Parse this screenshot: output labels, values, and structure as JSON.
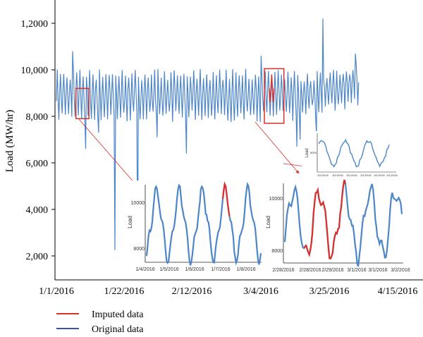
{
  "chart_data": {
    "type": "line",
    "title": "",
    "xlabel": "",
    "ylabel": "Load (MW/hr)",
    "x_ticks": [
      "1/1/2016",
      "1/22/2016",
      "2/12/2016",
      "3/4/2016",
      "3/25/2016",
      "4/15/2016"
    ],
    "y_ticks": [
      "2,000",
      "4,000",
      "6,000",
      "8,000",
      "10,000",
      "1,2000"
    ],
    "y_tick_values": [
      2000,
      4000,
      6000,
      8000,
      10000,
      12000
    ],
    "xlim": [
      "2016-01-01",
      "2016-04-15"
    ],
    "ylim": [
      1000,
      13000
    ],
    "grid": false,
    "legend_position": "bottom-left",
    "series": [
      {
        "name": "Imputed data",
        "color": "#d9302c"
      },
      {
        "name": "Original data",
        "color": "#4d86c8"
      }
    ],
    "original_data": {
      "daily_cycle": {
        "low": 8000,
        "high": 9800
      },
      "dips": [
        {
          "date": "2016-01-10",
          "value": 6600
        },
        {
          "date": "2016-01-14",
          "value": 7300
        },
        {
          "date": "2016-01-19",
          "value": 2250
        },
        {
          "date": "2016-01-26",
          "value": 1850
        },
        {
          "date": "2016-02-01",
          "value": 7100
        },
        {
          "date": "2016-02-10",
          "value": 6400
        },
        {
          "date": "2016-03-15",
          "value": 6700
        },
        {
          "date": "2016-03-16",
          "value": 7000
        },
        {
          "date": "2016-03-21",
          "value": 7200
        }
      ],
      "spikes": [
        {
          "date": "2016-01-06",
          "value": 10800
        },
        {
          "date": "2016-03-04",
          "value": 10600
        },
        {
          "date": "2016-03-23",
          "value": 12200
        },
        {
          "date": "2016-04-02",
          "value": 10700
        }
      ],
      "end_date": "2016-04-03"
    },
    "highlight_boxes": [
      {
        "start": "2016-01-07",
        "end": "2016-01-11",
        "low": 7900,
        "high": 9200
      },
      {
        "start": "2016-03-05",
        "end": "2016-03-11",
        "low": 7700,
        "high": 10050
      }
    ],
    "inset_1": {
      "x_ticks": [
        "1/4/2016",
        "1/5/2016",
        "1/6/2016",
        "1/7/2016",
        "1/8/2016"
      ],
      "y_ticks": [
        "8000",
        "10000"
      ],
      "ylabel": "Load",
      "low": 7900,
      "high": 10400
    },
    "inset_2": {
      "x_ticks": [
        "2/28/2016",
        "2/28/2016",
        "2/29/2016",
        "3/1/2016",
        "3/1/2016",
        "3/2/2016"
      ],
      "y_ticks": [
        "8000",
        "10000"
      ],
      "ylabel": "Load",
      "low": 7800,
      "high": 10200
    },
    "inset_3": {
      "x_ticks": [
        "3/1/2016",
        "3/1/2016",
        "3/1/2016",
        "3/1/2016",
        "3/1/2016",
        "3/1/2016"
      ],
      "y_ticks": [
        "8000"
      ],
      "ylabel": "Load"
    }
  }
}
